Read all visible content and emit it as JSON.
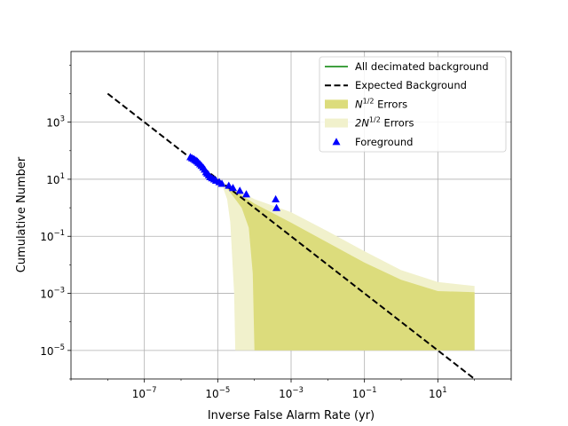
{
  "chart_data": {
    "type": "line",
    "xlabel": "Inverse False Alarm Rate (yr)",
    "ylabel": "Cumulative Number",
    "xscale": "log",
    "yscale": "log",
    "xlim": [
      1e-09,
      1000
    ],
    "ylim": [
      1e-06,
      300000
    ],
    "grid": true,
    "legend_position": "top-right",
    "xticks": [
      {
        "value": 1e-07,
        "base": "10",
        "exp": "−7"
      },
      {
        "value": 1e-05,
        "base": "10",
        "exp": "−5"
      },
      {
        "value": 0.001,
        "base": "10",
        "exp": "−3"
      },
      {
        "value": 0.1,
        "base": "10",
        "exp": "−1"
      },
      {
        "value": 10,
        "base": "10",
        "exp": "1"
      }
    ],
    "yticks": [
      {
        "value": 1e-05,
        "base": "10",
        "exp": "−5"
      },
      {
        "value": 0.001,
        "base": "10",
        "exp": "−3"
      },
      {
        "value": 0.1,
        "base": "10",
        "exp": "−1"
      },
      {
        "value": 10,
        "base": "10",
        "exp": "1"
      },
      {
        "value": 1000,
        "base": "10",
        "exp": "3"
      }
    ],
    "legend": [
      {
        "label": "All decimated background",
        "kind": "line",
        "color": "#008000"
      },
      {
        "label": "Expected Background",
        "kind": "dashed",
        "color": "#000000"
      },
      {
        "label_base": "N",
        "label_sup": "1/2",
        "label_rest": " Errors",
        "kind": "patch",
        "color": "#dcdc7c"
      },
      {
        "label_base": "2N",
        "label_sup": "1/2",
        "label_rest": " Errors",
        "kind": "patch",
        "color": "#f1f1cc"
      },
      {
        "label": "Foreground",
        "kind": "marker",
        "color": "#0000ff"
      }
    ],
    "series": [
      {
        "name": "Expected Background",
        "style": "dashed",
        "color": "#000000",
        "points": [
          [
            1e-08,
            10000
          ],
          [
            100,
            1e-06
          ]
        ]
      },
      {
        "name": "2N^1/2 Errors",
        "style": "band",
        "color": "#f1f1cc",
        "upper": [
          [
            1.2e-05,
            8.5
          ],
          [
            0.0001,
            2
          ],
          [
            0.001,
            0.7
          ],
          [
            0.01,
            0.15
          ],
          [
            0.1,
            0.03
          ],
          [
            1,
            0.0065
          ],
          [
            10,
            0.0025
          ],
          [
            100,
            0.0018
          ]
        ],
        "lower": [
          [
            100,
            1e-05
          ],
          [
            3e-05,
            1e-05
          ],
          [
            2.8e-05,
            0.001
          ],
          [
            2.2e-05,
            0.3
          ],
          [
            1.8e-05,
            2
          ],
          [
            1.2e-05,
            8.5
          ]
        ]
      },
      {
        "name": "N^1/2 Errors",
        "style": "band",
        "color": "#dcdc7c",
        "upper": [
          [
            1.2e-05,
            8
          ],
          [
            0.0001,
            1.4
          ],
          [
            0.001,
            0.3
          ],
          [
            0.01,
            0.06
          ],
          [
            0.1,
            0.012
          ],
          [
            1,
            0.003
          ],
          [
            10,
            0.0012
          ],
          [
            100,
            0.0011
          ]
        ],
        "lower": [
          [
            100,
            1e-05
          ],
          [
            0.0001,
            1e-05
          ],
          [
            9e-05,
            0.005
          ],
          [
            7e-05,
            0.2
          ],
          [
            4.5e-05,
            1
          ],
          [
            3e-05,
            2
          ],
          [
            2e-05,
            4
          ],
          [
            1.2e-05,
            8
          ]
        ]
      },
      {
        "name": "Foreground",
        "style": "markers",
        "color": "#0000ff",
        "points": [
          [
            1.8e-06,
            60
          ],
          [
            2e-06,
            55
          ],
          [
            2.2e-06,
            52
          ],
          [
            2.4e-06,
            48
          ],
          [
            2.6e-06,
            45
          ],
          [
            2.8e-06,
            42
          ],
          [
            3e-06,
            38
          ],
          [
            3.3e-06,
            34
          ],
          [
            3.6e-06,
            30
          ],
          [
            4e-06,
            26
          ],
          [
            4.4e-06,
            22
          ],
          [
            4.8e-06,
            18
          ],
          [
            5.2e-06,
            16
          ],
          [
            5.7e-06,
            14
          ],
          [
            6.2e-06,
            12
          ],
          [
            7e-06,
            11
          ],
          [
            8e-06,
            10
          ],
          [
            9e-06,
            9
          ],
          [
            1.1e-05,
            8
          ],
          [
            1.3e-05,
            7
          ],
          [
            2e-05,
            6
          ],
          [
            2.6e-05,
            5
          ],
          [
            4e-05,
            4
          ],
          [
            6e-05,
            3
          ],
          [
            0.00038,
            2
          ],
          [
            0.0004,
            1
          ]
        ]
      }
    ]
  }
}
